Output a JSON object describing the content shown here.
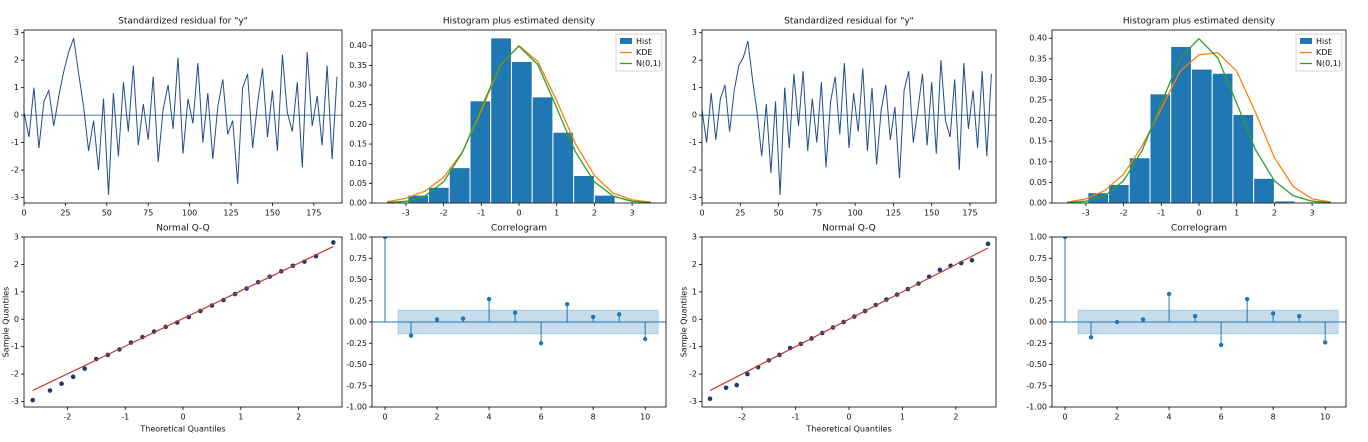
{
  "chart_data": [
    {
      "type": "line",
      "title": "Standardized residual for \"y\"",
      "color": "#1f4e8c",
      "baseline": 0,
      "x": [
        0,
        3,
        6,
        9,
        12,
        15,
        18,
        21,
        24,
        27,
        30,
        33,
        36,
        39,
        42,
        45,
        48,
        51,
        54,
        57,
        60,
        63,
        66,
        69,
        72,
        75,
        78,
        81,
        84,
        87,
        90,
        93,
        96,
        99,
        102,
        105,
        108,
        111,
        114,
        117,
        120,
        123,
        126,
        129,
        132,
        135,
        138,
        141,
        144,
        147,
        150,
        153,
        156,
        159,
        162,
        165,
        168,
        171,
        174,
        177,
        180,
        183,
        186,
        189
      ],
      "values": [
        0.1,
        -0.8,
        1.0,
        -1.2,
        0.5,
        0.9,
        -0.4,
        0.7,
        1.6,
        2.3,
        2.8,
        1.5,
        0.3,
        -1.3,
        -0.2,
        -2.0,
        0.6,
        -2.9,
        0.8,
        -1.5,
        1.2,
        -0.6,
        1.8,
        -1.1,
        0.4,
        -0.9,
        1.4,
        -1.7,
        0.2,
        1.1,
        -0.5,
        2.1,
        -1.4,
        0.6,
        -0.3,
        1.9,
        -1.0,
        0.8,
        -1.6,
        0.3,
        1.3,
        -0.7,
        -0.2,
        -2.5,
        1.0,
        1.5,
        -1.2,
        0.4,
        1.7,
        -0.8,
        0.9,
        -1.3,
        2.2,
        0.1,
        -0.6,
        1.2,
        -1.9,
        2.3,
        -0.4,
        0.7,
        -1.1,
        1.8,
        -1.6,
        1.4
      ],
      "xlim": [
        0,
        192
      ],
      "xticks": [
        0,
        25,
        50,
        75,
        100,
        125,
        150,
        175
      ],
      "ylim": [
        -3.2,
        3.1
      ],
      "yticks": [
        -3,
        -2,
        -1,
        0,
        1,
        2,
        3
      ]
    },
    {
      "type": "histogram",
      "title": "Histogram plus estimated density",
      "label": "Hist",
      "color": "#1f77b4",
      "legend": "upper right",
      "bins": [
        -2.95,
        -2.4,
        -1.85,
        -1.3,
        -0.75,
        -0.2,
        0.35,
        0.9,
        1.45,
        2.0,
        2.55
      ],
      "values": [
        0.02,
        0.04,
        0.09,
        0.26,
        0.42,
        0.36,
        0.27,
        0.18,
        0.07,
        0.02
      ],
      "curve_x": [
        -3.5,
        -3,
        -2.5,
        -2,
        -1.5,
        -1,
        -0.5,
        0,
        0.5,
        1,
        1.5,
        2,
        2.5,
        3,
        3.5
      ],
      "series": [
        {
          "name": "KDE",
          "color": "#ff7f0e",
          "values": [
            0.003,
            0.012,
            0.03,
            0.065,
            0.13,
            0.235,
            0.35,
            0.4,
            0.36,
            0.26,
            0.15,
            0.07,
            0.025,
            0.008,
            0.002
          ]
        },
        {
          "name": "N(0,1)",
          "color": "#2ca02c",
          "values": [
            0.0009,
            0.0044,
            0.0175,
            0.054,
            0.1295,
            0.242,
            0.3521,
            0.3989,
            0.3521,
            0.242,
            0.1295,
            0.054,
            0.0175,
            0.0044,
            0.0009
          ]
        }
      ],
      "xlim": [
        -3.9,
        3.9
      ],
      "xticks": [
        -3,
        -2,
        -1,
        0,
        1,
        2,
        3
      ],
      "ylim": [
        0,
        0.44
      ],
      "yticks": [
        {
          "value": 0,
          "label": "0.00"
        },
        {
          "value": 0.05,
          "label": "0.05"
        },
        {
          "value": 0.1,
          "label": "0.10"
        },
        {
          "value": 0.15,
          "label": "0.15"
        },
        {
          "value": 0.2,
          "label": "0.20"
        },
        {
          "value": 0.25,
          "label": "0.25"
        },
        {
          "value": 0.3,
          "label": "0.30"
        },
        {
          "value": 0.35,
          "label": "0.35"
        },
        {
          "value": 0.4,
          "label": "0.40"
        }
      ]
    },
    {
      "type": "line",
      "title": "Standardized residual for \"y\"",
      "color": "#1f4e8c",
      "baseline": 0,
      "x": [
        0,
        3,
        6,
        9,
        12,
        15,
        18,
        21,
        24,
        27,
        30,
        33,
        36,
        39,
        42,
        45,
        48,
        51,
        54,
        57,
        60,
        63,
        66,
        69,
        72,
        75,
        78,
        81,
        84,
        87,
        90,
        93,
        96,
        99,
        102,
        105,
        108,
        111,
        114,
        117,
        120,
        123,
        126,
        129,
        132,
        135,
        138,
        141,
        144,
        147,
        150,
        153,
        156,
        159,
        162,
        165,
        168,
        171,
        174,
        177,
        180,
        183,
        186,
        189
      ],
      "values": [
        0.2,
        -1.0,
        0.8,
        -0.9,
        0.6,
        1.1,
        -0.6,
        0.9,
        1.8,
        2.1,
        2.7,
        1.3,
        0.1,
        -1.5,
        0.4,
        -2.1,
        0.5,
        -2.9,
        1.0,
        -1.2,
        1.5,
        -0.4,
        1.6,
        -1.3,
        0.6,
        -1.0,
        1.2,
        -1.9,
        0.5,
        1.4,
        -0.7,
        1.9,
        -1.2,
        0.8,
        -0.6,
        1.7,
        -1.3,
        1.0,
        -1.8,
        0.2,
        1.1,
        -0.9,
        0.3,
        -2.3,
        0.9,
        1.6,
        -1.0,
        0.2,
        1.5,
        -1.1,
        1.2,
        -1.4,
        2.0,
        -0.2,
        -0.8,
        1.3,
        -2.0,
        1.9,
        -0.5,
        0.9,
        -1.2,
        1.6,
        -1.5,
        1.5
      ],
      "xlim": [
        0,
        192
      ],
      "xticks": [
        0,
        25,
        50,
        75,
        100,
        125,
        150,
        175
      ],
      "ylim": [
        -3.2,
        3.1
      ],
      "yticks": [
        -3,
        -2,
        -1,
        0,
        1,
        2,
        3
      ]
    },
    {
      "type": "histogram",
      "title": "Histogram plus estimated density",
      "label": "Hist",
      "color": "#1f77b4",
      "legend": "upper right",
      "bins": [
        -2.95,
        -2.4,
        -1.85,
        -1.3,
        -0.75,
        -0.2,
        0.35,
        0.9,
        1.45,
        2.0,
        2.55
      ],
      "values": [
        0.025,
        0.045,
        0.11,
        0.265,
        0.38,
        0.325,
        0.315,
        0.215,
        0.06,
        0.005
      ],
      "curve_x": [
        -3.5,
        -3,
        -2.5,
        -2,
        -1.5,
        -1,
        -0.5,
        0,
        0.5,
        1,
        1.5,
        2,
        2.5,
        3,
        3.5
      ],
      "series": [
        {
          "name": "KDE",
          "color": "#ff7f0e",
          "values": [
            0.002,
            0.01,
            0.03,
            0.07,
            0.14,
            0.23,
            0.32,
            0.36,
            0.365,
            0.32,
            0.22,
            0.11,
            0.04,
            0.01,
            0.002
          ]
        },
        {
          "name": "N(0,1)",
          "color": "#2ca02c",
          "values": [
            0.0009,
            0.0044,
            0.0175,
            0.054,
            0.1295,
            0.242,
            0.3521,
            0.3989,
            0.3521,
            0.242,
            0.1295,
            0.054,
            0.0175,
            0.0044,
            0.0009
          ]
        }
      ],
      "xlim": [
        -3.9,
        3.9
      ],
      "xticks": [
        -3,
        -2,
        -1,
        0,
        1,
        2,
        3
      ],
      "ylim": [
        0,
        0.42
      ],
      "yticks": [
        {
          "value": 0,
          "label": "0.00"
        },
        {
          "value": 0.05,
          "label": "0.05"
        },
        {
          "value": 0.1,
          "label": "0.10"
        },
        {
          "value": 0.15,
          "label": "0.15"
        },
        {
          "value": 0.2,
          "label": "0.20"
        },
        {
          "value": 0.25,
          "label": "0.25"
        },
        {
          "value": 0.3,
          "label": "0.30"
        },
        {
          "value": 0.35,
          "label": "0.35"
        },
        {
          "value": 0.4,
          "label": "0.40"
        }
      ]
    },
    {
      "type": "scatter",
      "title": "Normal Q-Q",
      "xlabel": "Theoretical Quantiles",
      "ylabel": "Sample Quantiles",
      "color": "#1f3a6e",
      "x": [
        -2.6,
        -2.3,
        -2.1,
        -1.9,
        -1.7,
        -1.5,
        -1.3,
        -1.1,
        -0.9,
        -0.7,
        -0.5,
        -0.3,
        -0.1,
        0.1,
        0.3,
        0.5,
        0.7,
        0.9,
        1.1,
        1.3,
        1.5,
        1.7,
        1.9,
        2.1,
        2.3,
        2.6
      ],
      "values": [
        -2.95,
        -2.6,
        -2.35,
        -2.1,
        -1.8,
        -1.45,
        -1.3,
        -1.1,
        -0.85,
        -0.65,
        -0.45,
        -0.28,
        -0.12,
        0.08,
        0.3,
        0.5,
        0.7,
        0.92,
        1.12,
        1.35,
        1.55,
        1.75,
        1.95,
        2.1,
        2.3,
        2.8
      ],
      "line": {
        "color": "#c0392b",
        "x": [
          -2.6,
          2.6
        ],
        "values": [
          -2.6,
          2.65
        ]
      },
      "xlim": [
        -2.75,
        2.75
      ],
      "xticks": [
        -2,
        -1,
        0,
        1,
        2
      ],
      "ylim": [
        -3.2,
        3.0
      ],
      "yticks": [
        -3,
        -2,
        -1,
        0,
        1,
        2,
        3
      ]
    },
    {
      "type": "stem",
      "title": "Correlogram",
      "color": "#1f77b4",
      "baseline": 0,
      "x": [
        0,
        1,
        2,
        3,
        4,
        5,
        6,
        7,
        8,
        9,
        10
      ],
      "values": [
        1,
        -0.16,
        0.03,
        0.04,
        0.27,
        0.11,
        -0.25,
        0.21,
        0.06,
        0.09,
        -0.2
      ],
      "conf": 0.14,
      "conf_x": [
        0.5,
        10.5
      ],
      "xlim": [
        -0.5,
        10.8
      ],
      "xticks": [
        0,
        2,
        4,
        6,
        8,
        10
      ],
      "ylim": [
        -1,
        1
      ],
      "yticks": [
        {
          "value": -1,
          "label": "-1.00"
        },
        {
          "value": -0.75,
          "label": "-0.75"
        },
        {
          "value": -0.5,
          "label": "-0.50"
        },
        {
          "value": -0.25,
          "label": "-0.25"
        },
        {
          "value": 0,
          "label": "0.00"
        },
        {
          "value": 0.25,
          "label": "0.25"
        },
        {
          "value": 0.5,
          "label": "0.50"
        },
        {
          "value": 0.75,
          "label": "0.75"
        },
        {
          "value": 1,
          "label": "1.00"
        }
      ]
    },
    {
      "type": "scatter",
      "title": "Normal Q-Q",
      "xlabel": "Theoretical Quantiles",
      "ylabel": "Sample Quantiles",
      "color": "#1f3a6e",
      "x": [
        -2.6,
        -2.3,
        -2.1,
        -1.9,
        -1.7,
        -1.5,
        -1.3,
        -1.1,
        -0.9,
        -0.7,
        -0.5,
        -0.3,
        -0.1,
        0.1,
        0.3,
        0.5,
        0.7,
        0.9,
        1.1,
        1.3,
        1.5,
        1.7,
        1.9,
        2.1,
        2.3,
        2.6
      ],
      "values": [
        -2.9,
        -2.5,
        -2.4,
        -2.0,
        -1.75,
        -1.5,
        -1.3,
        -1.05,
        -0.9,
        -0.7,
        -0.5,
        -0.3,
        -0.1,
        0.1,
        0.3,
        0.52,
        0.72,
        0.9,
        1.1,
        1.3,
        1.55,
        1.8,
        1.95,
        2.05,
        2.15,
        2.75
      ],
      "line": {
        "color": "#c0392b",
        "x": [
          -2.6,
          2.6
        ],
        "values": [
          -2.6,
          2.6
        ]
      },
      "xlim": [
        -2.75,
        2.75
      ],
      "xticks": [
        -2,
        -1,
        0,
        1,
        2
      ],
      "ylim": [
        -3.2,
        3.0
      ],
      "yticks": [
        -3,
        -2,
        -1,
        0,
        1,
        2,
        3
      ]
    },
    {
      "type": "stem",
      "title": "Correlogram",
      "color": "#1f77b4",
      "baseline": 0,
      "x": [
        0,
        1,
        2,
        3,
        4,
        5,
        6,
        7,
        8,
        9,
        10
      ],
      "values": [
        1,
        -0.18,
        0.0,
        0.03,
        0.33,
        0.07,
        -0.27,
        0.27,
        0.1,
        0.07,
        -0.24
      ],
      "conf": 0.14,
      "conf_x": [
        0.5,
        10.5
      ],
      "xlim": [
        -0.5,
        10.8
      ],
      "xticks": [
        0,
        2,
        4,
        6,
        8,
        10
      ],
      "ylim": [
        -1,
        1
      ],
      "yticks": [
        {
          "value": -1,
          "label": "-1.00"
        },
        {
          "value": -0.75,
          "label": "-0.75"
        },
        {
          "value": -0.5,
          "label": "-0.50"
        },
        {
          "value": -0.25,
          "label": "-0.25"
        },
        {
          "value": 0,
          "label": "0.00"
        },
        {
          "value": 0.25,
          "label": "0.25"
        },
        {
          "value": 0.5,
          "label": "0.50"
        },
        {
          "value": 0.75,
          "label": "0.75"
        },
        {
          "value": 1,
          "label": "1.00"
        }
      ]
    }
  ]
}
